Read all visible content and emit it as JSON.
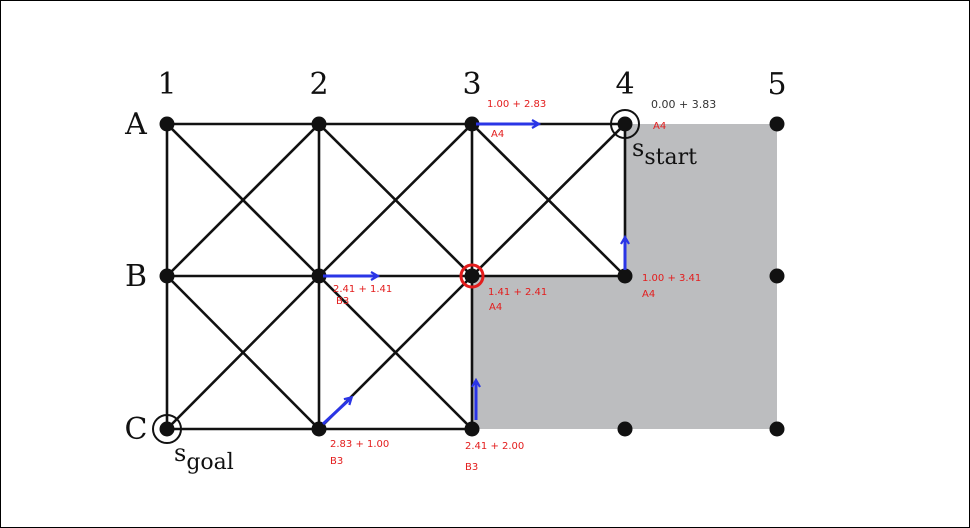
{
  "columns": [
    "1",
    "2",
    "3",
    "4",
    "5"
  ],
  "rows": [
    "A",
    "B",
    "C"
  ],
  "start": {
    "main": "s",
    "sub": "start"
  },
  "goal": {
    "main": "s",
    "sub": "goal"
  },
  "annotations": {
    "a3_cost": "1.00 + 2.83",
    "a3_parent": "A4",
    "a4_cost": "0.00 + 3.83",
    "a4_parent": "A4",
    "b2_cost": "2.41 + 1.41",
    "b2_parent": "B3",
    "b3_cost": "1.41 + 2.41",
    "b3_parent": "A4",
    "b4_cost": "1.00 + 3.41",
    "b4_parent": "A4",
    "c2_cost": "2.83 + 1.00",
    "c2_parent": "B3",
    "c3_cost": "2.41 + 2.00",
    "c3_parent": "B3"
  },
  "colors": {
    "obstacle": "#bcbdbf",
    "arrow": "#2a35e6",
    "annotation": "#e31c1c",
    "highlight": "#e31c1c"
  }
}
